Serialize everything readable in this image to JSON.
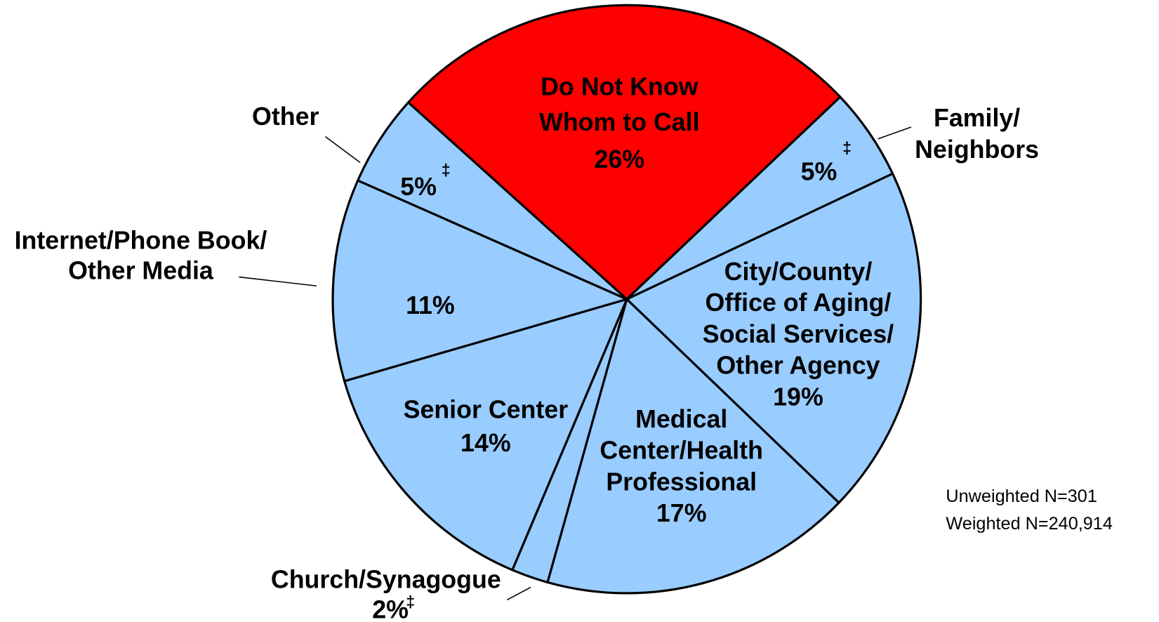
{
  "chart_data": {
    "type": "pie",
    "categories": [
      [
        "Do Not Know",
        "Whom to Call"
      ],
      [
        "Family/",
        "Neighbors"
      ],
      [
        "City/County/",
        "Office of Aging/",
        "Social Services/",
        "Other Agency"
      ],
      [
        "Medical",
        "Center/Health",
        "Professional"
      ],
      [
        "Church/Synagogue"
      ],
      [
        "Senior Center"
      ],
      [
        "Internet/Phone Book/",
        "Other Media"
      ],
      [
        "Other"
      ]
    ],
    "values": [
      26,
      5,
      19,
      17,
      2,
      14,
      11,
      5
    ],
    "value_labels": [
      "26%",
      "5%",
      "19%",
      "17%",
      "2%",
      "14%",
      "11%",
      "5%"
    ],
    "colors": [
      "#ff0000",
      "#99ccff",
      "#99ccff",
      "#99ccff",
      "#99ccff",
      "#99ccff",
      "#99ccff",
      "#99ccff"
    ],
    "footnote_mark": "‡",
    "marked": [
      false,
      true,
      false,
      false,
      true,
      false,
      false,
      true
    ],
    "notes": [
      "Unweighted N=301",
      "Weighted N=240,914"
    ]
  }
}
